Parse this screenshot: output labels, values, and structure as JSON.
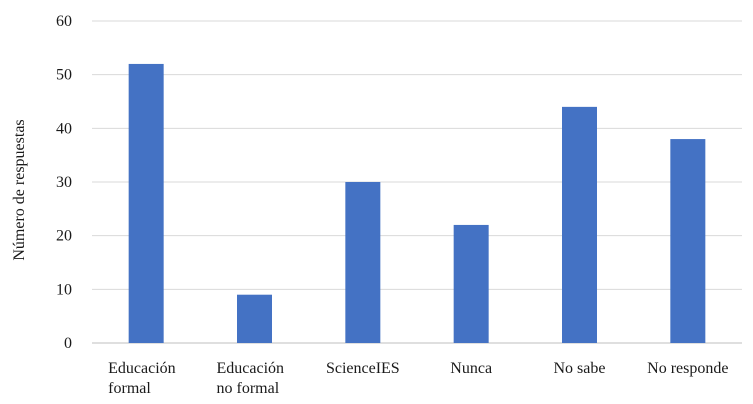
{
  "chart_data": {
    "type": "bar",
    "categories": [
      [
        "Educación",
        "formal"
      ],
      [
        "Educación",
        "no formal"
      ],
      [
        "ScienceIES"
      ],
      [
        "Nunca"
      ],
      [
        "No sabe"
      ],
      [
        "No responde"
      ]
    ],
    "values": [
      52,
      9,
      30,
      22,
      44,
      38
    ],
    "title": "",
    "xlabel": "",
    "ylabel": "Número de respuestas",
    "ylim": [
      0,
      60
    ],
    "yticks": [
      0,
      10,
      20,
      30,
      40,
      50,
      60
    ],
    "grid": true,
    "legend": "none",
    "bar_color": "#4472c4"
  }
}
